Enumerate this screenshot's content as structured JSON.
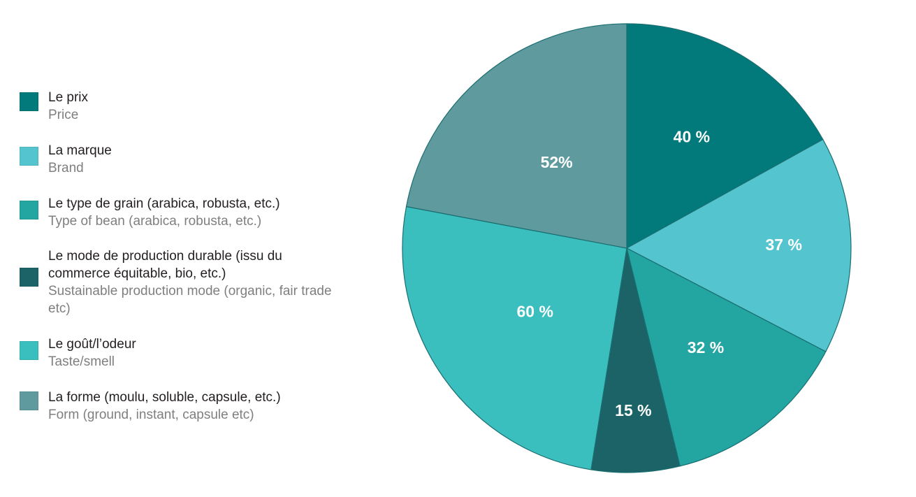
{
  "chart_data": {
    "type": "pie",
    "title": "",
    "slices": [
      {
        "fr": "Le prix",
        "en": "Price",
        "value": 40,
        "label": "40 %",
        "color": "#027a7b"
      },
      {
        "fr": "La marque",
        "en": "Brand",
        "value": 37,
        "label": "37 %",
        "color": "#54c5ce"
      },
      {
        "fr": "Le type de grain (arabica, robusta, etc.)",
        "en": "Type of bean (arabica, robusta, etc.)",
        "value": 32,
        "label": "32 %",
        "color": "#23a5a1"
      },
      {
        "fr": "Le mode de production durable (issu du commerce équitable, bio, etc.)",
        "en": "Sustainable production mode (organic, fair trade etc)",
        "value": 15,
        "label": "15 %",
        "color": "#1b6366"
      },
      {
        "fr": "Le goût/l’odeur",
        "en": "Taste/smell",
        "value": 60,
        "label": "60 %",
        "color": "#3bbebe"
      },
      {
        "fr": "La forme (moulu, soluble, capsule, etc.)",
        "en": "Form (ground, instant, capsule etc)",
        "value": 52,
        "label": "52%",
        "color": "#5f9b9e"
      }
    ],
    "legend_position": "left"
  }
}
